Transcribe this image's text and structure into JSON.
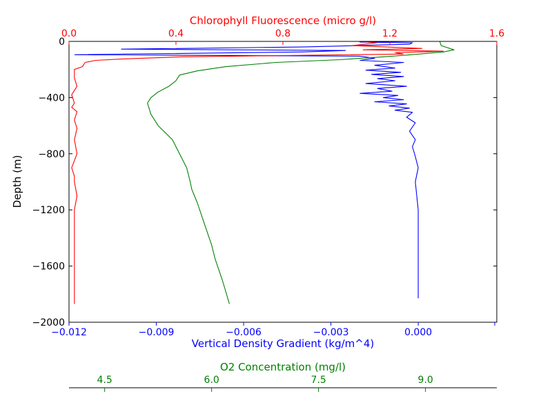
{
  "chart_data": {
    "type": "line",
    "axes": {
      "depth": {
        "label": "Depth (m)",
        "range": [
          -2000,
          0
        ],
        "ticks": [
          0,
          -400,
          -800,
          -1200,
          -1600,
          -2000
        ],
        "tick_labels": [
          "0",
          "−400",
          "−800",
          "−1200",
          "−1600",
          "−2000"
        ]
      },
      "density": {
        "label": "Vertical Density Gradient (kg/m^4)",
        "color": "#0000ff",
        "range": [
          -0.012,
          0.0027
        ],
        "ticks": [
          -0.012,
          -0.009,
          -0.006,
          -0.003,
          0.0
        ],
        "tick_labels": [
          "−0.012",
          "−0.009",
          "−0.006",
          "−0.003",
          "0.000"
        ]
      },
      "chlorophyll": {
        "label": "Chlorophyll Fluorescence (micro g/l)",
        "color": "#ff0000",
        "range": [
          0,
          1.6
        ],
        "ticks": [
          0,
          0.4,
          0.8,
          1.2,
          1.6
        ],
        "tick_labels": [
          "0.0",
          "0.4",
          "0.8",
          "1.2",
          "1.6"
        ]
      },
      "oxygen": {
        "label": "O2 Concentration (mg/l)",
        "color": "#008000",
        "range": [
          4.0,
          10.0
        ],
        "ticks": [
          4.5,
          6.0,
          7.5,
          9.0
        ],
        "tick_labels": [
          "4.5",
          "6.0",
          "7.5",
          "9.0"
        ]
      }
    },
    "series": [
      {
        "axis": "density",
        "color": "#0000ff",
        "points": [
          [
            0.0,
            0
          ],
          [
            -0.002,
            -5
          ],
          [
            -0.0002,
            -10
          ],
          [
            -0.0003,
            -20
          ],
          [
            -0.004,
            -40
          ],
          [
            -0.0102,
            -55
          ],
          [
            -0.0025,
            -65
          ],
          [
            -0.004,
            -75
          ],
          [
            -0.0118,
            -95
          ],
          [
            -0.002,
            -105
          ],
          [
            -0.0015,
            -120
          ],
          [
            -0.002,
            -135
          ],
          [
            -0.0005,
            -150
          ],
          [
            -0.0015,
            -170
          ],
          [
            -0.0008,
            -190
          ],
          [
            -0.0018,
            -205
          ],
          [
            -0.0006,
            -220
          ],
          [
            -0.0016,
            -235
          ],
          [
            -0.0005,
            -250
          ],
          [
            -0.0014,
            -265
          ],
          [
            -0.0008,
            -280
          ],
          [
            -0.0018,
            -300
          ],
          [
            -0.0004,
            -320
          ],
          [
            -0.0014,
            -335
          ],
          [
            -0.0009,
            -355
          ],
          [
            -0.002,
            -370
          ],
          [
            -0.0007,
            -385
          ],
          [
            -0.0012,
            -400
          ],
          [
            -0.0005,
            -415
          ],
          [
            -0.0015,
            -430
          ],
          [
            -0.0004,
            -445
          ],
          [
            -0.001,
            -460
          ],
          [
            -0.0003,
            -475
          ],
          [
            -0.0008,
            -490
          ],
          [
            -0.0002,
            -505
          ],
          [
            -0.0004,
            -540
          ],
          [
            -0.0001,
            -580
          ],
          [
            -0.0003,
            -640
          ],
          [
            -0.0001,
            -700
          ],
          [
            -0.0002,
            -750
          ],
          [
            -0.0001,
            -820
          ],
          [
            0.0,
            -900
          ],
          [
            -0.0001,
            -1000
          ],
          [
            0.0,
            -1200
          ],
          [
            0.0,
            -1400
          ],
          [
            0.0,
            -1600
          ],
          [
            0.0,
            -1800
          ],
          [
            0.0,
            -1830
          ]
        ]
      },
      {
        "axis": "chlorophyll",
        "color": "#ff0000",
        "points": [
          [
            1.08,
            0
          ],
          [
            1.15,
            -10
          ],
          [
            1.06,
            -30
          ],
          [
            1.32,
            -50
          ],
          [
            1.1,
            -60
          ],
          [
            1.4,
            -70
          ],
          [
            1.22,
            -80
          ],
          [
            1.25,
            -90
          ],
          [
            0.42,
            -110
          ],
          [
            0.2,
            -125
          ],
          [
            0.1,
            -135
          ],
          [
            0.06,
            -150
          ],
          [
            0.05,
            -180
          ],
          [
            0.02,
            -200
          ],
          [
            0.02,
            -260
          ],
          [
            0.03,
            -320
          ],
          [
            0.01,
            -380
          ],
          [
            0.02,
            -440
          ],
          [
            0.01,
            -470
          ],
          [
            0.03,
            -500
          ],
          [
            0.02,
            -560
          ],
          [
            0.03,
            -620
          ],
          [
            0.02,
            -700
          ],
          [
            0.03,
            -800
          ],
          [
            0.01,
            -900
          ],
          [
            0.02,
            -960
          ],
          [
            0.02,
            -1000
          ],
          [
            0.03,
            -1100
          ],
          [
            0.02,
            -1200
          ],
          [
            0.02,
            -1400
          ],
          [
            0.02,
            -1600
          ],
          [
            0.02,
            -1700
          ],
          [
            0.02,
            -1870
          ]
        ]
      },
      {
        "axis": "oxygen",
        "color": "#008000",
        "points": [
          [
            9.2,
            0
          ],
          [
            9.22,
            -30
          ],
          [
            9.4,
            -60
          ],
          [
            9.25,
            -75
          ],
          [
            8.8,
            -95
          ],
          [
            8.4,
            -110
          ],
          [
            7.8,
            -130
          ],
          [
            6.9,
            -150
          ],
          [
            6.2,
            -180
          ],
          [
            5.8,
            -210
          ],
          [
            5.55,
            -240
          ],
          [
            5.5,
            -280
          ],
          [
            5.4,
            -320
          ],
          [
            5.25,
            -360
          ],
          [
            5.15,
            -400
          ],
          [
            5.1,
            -440
          ],
          [
            5.15,
            -520
          ],
          [
            5.25,
            -600
          ],
          [
            5.45,
            -700
          ],
          [
            5.55,
            -800
          ],
          [
            5.65,
            -900
          ],
          [
            5.7,
            -1000
          ],
          [
            5.72,
            -1050
          ],
          [
            5.8,
            -1150
          ],
          [
            5.9,
            -1300
          ],
          [
            6.0,
            -1450
          ],
          [
            6.05,
            -1550
          ],
          [
            6.15,
            -1700
          ],
          [
            6.25,
            -1870
          ]
        ]
      }
    ]
  }
}
